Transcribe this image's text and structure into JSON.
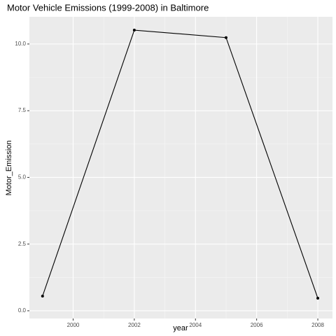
{
  "chart_data": {
    "type": "line",
    "title": "Motor Vehicle Emissions (1999-2008) in Baltimore",
    "x_label": "year",
    "y_label": "Motor_Emission",
    "x": [
      1999,
      2002,
      2005,
      2008
    ],
    "series": [
      {
        "name": "Motor_Emission",
        "color": "#000000",
        "values": [
          0.55,
          10.52,
          10.24,
          0.47
        ]
      }
    ],
    "xlim": [
      1998.57,
      2008.48
    ],
    "xticks": [
      2000,
      2002,
      2004,
      2006,
      2008
    ],
    "ylim": [
      -0.29,
      11.02
    ],
    "yticks": [
      {
        "value": 0,
        "label": "0.0"
      },
      {
        "value": 2.5,
        "label": "2.5"
      },
      {
        "value": 5,
        "label": "5.0"
      },
      {
        "value": 7.5,
        "label": "7.5"
      },
      {
        "value": 10,
        "label": "10.0"
      }
    ],
    "grid": true
  }
}
